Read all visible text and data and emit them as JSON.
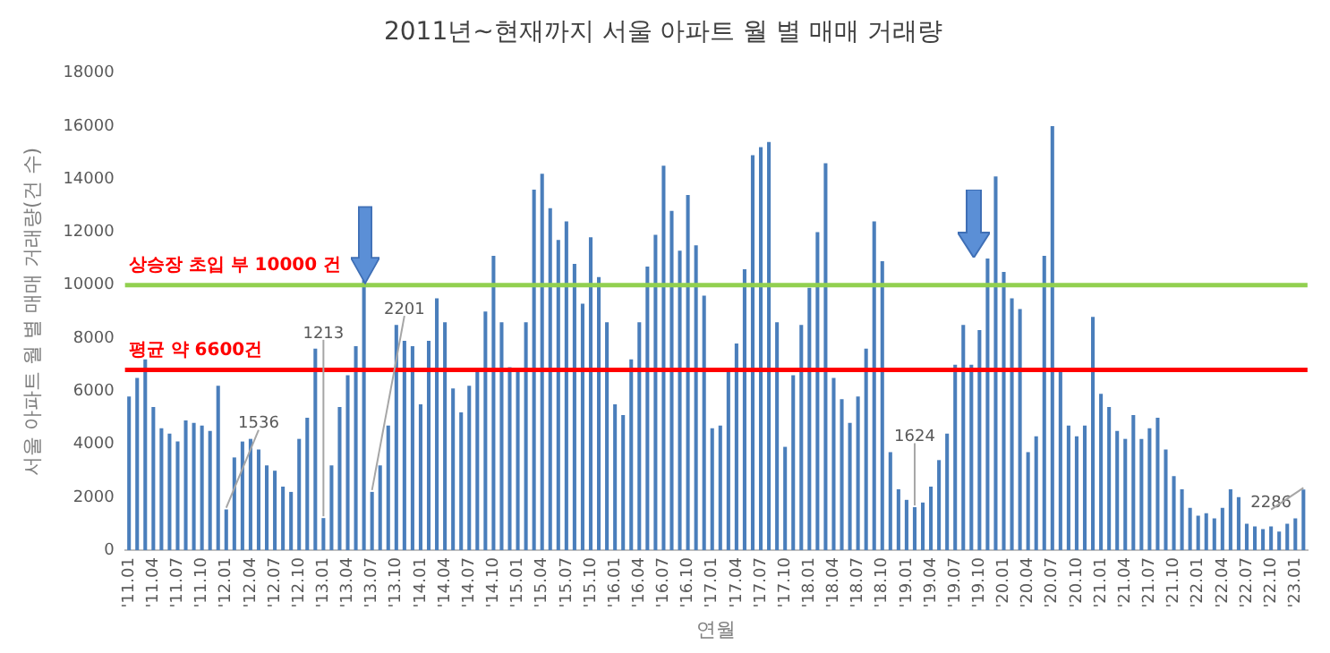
{
  "chart_data": {
    "type": "bar",
    "title": "2011년~현재까지 서울 아파트 월 별 매매 거래량",
    "xlabel": "연월",
    "ylabel": "서울 아파트 월 별 매매 거래량(건 수)",
    "categories": [
      "'11.01",
      null,
      null,
      "'11.04",
      null,
      null,
      "'11.07",
      null,
      null,
      "'11.10",
      null,
      null,
      "'12.01",
      null,
      null,
      "'12.04",
      null,
      null,
      "'12.07",
      null,
      null,
      "'12.10",
      null,
      null,
      "'13.01",
      null,
      null,
      "'13.04",
      null,
      null,
      "'13.07",
      null,
      null,
      "'13.10",
      null,
      null,
      "'14.01",
      null,
      null,
      "'14.04",
      null,
      null,
      "'14.07",
      null,
      null,
      "'14.10",
      null,
      null,
      "'15.01",
      null,
      null,
      "'15.04",
      null,
      null,
      "'15.07",
      null,
      null,
      "'15.10",
      null,
      null,
      "'16.01",
      null,
      null,
      "'16.04",
      null,
      null,
      "'16.07",
      null,
      null,
      "'16.10",
      null,
      null,
      "'17.01",
      null,
      null,
      "'17.04",
      null,
      null,
      "'17.07",
      null,
      null,
      "'17.10",
      null,
      null,
      "'18.01",
      null,
      null,
      "'18.04",
      null,
      null,
      "'18.07",
      null,
      null,
      "'18.10",
      null,
      null,
      "'19.01",
      null,
      null,
      "'19.04",
      null,
      null,
      "'19.07",
      null,
      null,
      "'19.10",
      null,
      null,
      "'20.01",
      null,
      null,
      "'20.04",
      null,
      null,
      "'20.07",
      null,
      null,
      "'20.10",
      null,
      null,
      "'21.01",
      null,
      null,
      "'21.04",
      null,
      null,
      "'21.07",
      null,
      null,
      "'21.10",
      null,
      null,
      "'22.01",
      null,
      null,
      "'22.04",
      null,
      null,
      "'22.07",
      null,
      null,
      "'22.10",
      null,
      null,
      "'23.01",
      null
    ],
    "values": [
      5800,
      6500,
      7200,
      5400,
      4600,
      4400,
      4100,
      4900,
      4800,
      4700,
      4500,
      6200,
      1536,
      3500,
      4100,
      4200,
      3800,
      3200,
      3000,
      2400,
      2200,
      4200,
      5000,
      7600,
      1213,
      3200,
      5400,
      6600,
      7700,
      10200,
      2201,
      3200,
      4700,
      8500,
      7900,
      7700,
      5500,
      7900,
      9500,
      8600,
      6100,
      5200,
      6200,
      6800,
      9000,
      11100,
      8600,
      6900,
      6800,
      8600,
      13600,
      14200,
      12900,
      11700,
      12400,
      10800,
      9300,
      11800,
      10300,
      8600,
      5500,
      5100,
      7200,
      8600,
      10700,
      11900,
      14500,
      12800,
      11300,
      13400,
      11500,
      9600,
      4600,
      4700,
      6800,
      7800,
      10600,
      14900,
      15200,
      15400,
      8600,
      3900,
      6600,
      8500,
      9900,
      12000,
      14600,
      6500,
      5700,
      4800,
      5800,
      7600,
      12400,
      10900,
      3700,
      2300,
      1900,
      1624,
      1800,
      2400,
      3400,
      4400,
      7000,
      8500,
      7000,
      8300,
      11000,
      14100,
      10500,
      9500,
      9100,
      3700,
      4300,
      11100,
      16000,
      6800,
      4700,
      4300,
      4700,
      8800,
      5900,
      5400,
      4500,
      4200,
      5100,
      4200,
      4600,
      5000,
      3800,
      2800,
      2300,
      1600,
      1300,
      1400,
      1200,
      1600,
      2300,
      2000,
      1000,
      900,
      800,
      900,
      700,
      1000,
      1200,
      2286
    ],
    "value_labels": [
      null,
      null,
      null,
      null,
      null,
      null,
      null,
      null,
      null,
      null,
      null,
      null,
      "1536",
      null,
      null,
      null,
      null,
      null,
      null,
      null,
      null,
      null,
      null,
      null,
      "1213",
      null,
      null,
      null,
      null,
      null,
      "2201",
      null,
      null,
      null,
      null,
      null,
      null,
      null,
      null,
      null,
      null,
      null,
      null,
      null,
      null,
      null,
      null,
      null,
      null,
      null,
      null,
      null,
      null,
      null,
      null,
      null,
      null,
      null,
      null,
      null,
      null,
      null,
      null,
      null,
      null,
      null,
      null,
      null,
      null,
      null,
      null,
      null,
      null,
      null,
      null,
      null,
      null,
      null,
      null,
      null,
      null,
      null,
      null,
      null,
      null,
      null,
      null,
      null,
      null,
      null,
      null,
      null,
      null,
      null,
      null,
      null,
      null,
      "1624",
      null,
      null,
      null,
      null,
      null,
      null,
      null,
      null,
      null,
      null,
      null,
      null,
      null,
      null,
      null,
      null,
      null,
      null,
      null,
      null,
      null,
      null,
      null,
      null,
      null,
      null,
      null,
      null,
      null,
      null,
      null,
      null,
      null,
      null,
      null,
      null,
      null,
      null,
      null,
      null,
      null,
      null,
      null,
      null,
      null,
      null,
      null,
      "2286"
    ],
    "color": "#4a7ebb",
    "ylim": [
      0,
      18000
    ],
    "yticks": [
      0,
      2000,
      4000,
      6000,
      8000,
      10000,
      12000,
      14000,
      16000,
      18000
    ],
    "grid": false,
    "legend": false,
    "ref_lines": [
      {
        "axis": "y",
        "value": 10000,
        "label": "상승장 초입 부 10000 건",
        "color": "#92d050"
      },
      {
        "axis": "y",
        "value": 6800,
        "label": "평균 약 6600건",
        "color": "#ff0000"
      }
    ]
  }
}
